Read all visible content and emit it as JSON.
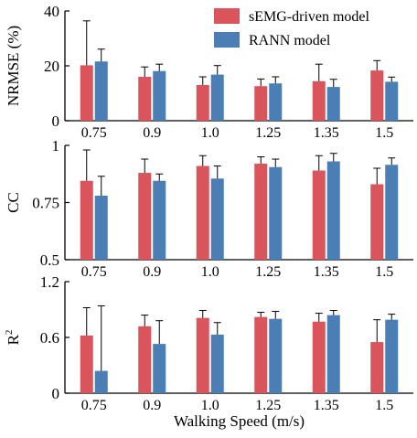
{
  "colors": {
    "semg": "#d9545b",
    "rann": "#4a7eb5",
    "axis": "#000000"
  },
  "chart_data": [
    {
      "type": "bar",
      "panel": "nrmse",
      "ylabel": "NRMSE (%)",
      "ylim": [
        0,
        40
      ],
      "yticks": [
        "0",
        "20",
        "40"
      ],
      "ytick_values": [
        0,
        20,
        40
      ],
      "categories": [
        "0.75",
        "0.9",
        "1.0",
        "1.25",
        "1.35",
        "1.5"
      ],
      "series": [
        {
          "name": "sEMG-driven model",
          "values": [
            20.2,
            16.0,
            13.0,
            12.6,
            14.4,
            18.3
          ],
          "errors": [
            16.2,
            3.6,
            3.0,
            2.6,
            6.2,
            3.6
          ]
        },
        {
          "name": "RANN model",
          "values": [
            21.6,
            18.1,
            16.8,
            13.6,
            12.3,
            14.2
          ],
          "errors": [
            4.5,
            2.5,
            3.3,
            2.4,
            2.8,
            1.7
          ]
        }
      ],
      "legend": "top-right"
    },
    {
      "type": "bar",
      "panel": "cc",
      "ylabel": "CC",
      "ylim": [
        0.5,
        1
      ],
      "yticks": [
        "0.5",
        "0.75",
        "1"
      ],
      "ytick_values": [
        0.5,
        0.75,
        1
      ],
      "categories": [
        "0.75",
        "0.9",
        "1.0",
        "1.25",
        "1.35",
        "1.5"
      ],
      "series": [
        {
          "name": "sEMG-driven model",
          "values": [
            0.845,
            0.88,
            0.91,
            0.92,
            0.89,
            0.83
          ],
          "errors": [
            0.135,
            0.06,
            0.045,
            0.03,
            0.065,
            0.07
          ]
        },
        {
          "name": "RANN model",
          "values": [
            0.78,
            0.845,
            0.855,
            0.905,
            0.93,
            0.915
          ],
          "errors": [
            0.085,
            0.03,
            0.055,
            0.035,
            0.035,
            0.03
          ]
        }
      ]
    },
    {
      "type": "bar",
      "panel": "r2",
      "ylabel": "R",
      "ylabel_sup": "2",
      "ylim": [
        0,
        1.2
      ],
      "yticks": [
        "0",
        "0.6",
        "1.2"
      ],
      "ytick_values": [
        0,
        0.6,
        1.2
      ],
      "categories": [
        "0.75",
        "0.9",
        "1.0",
        "1.25",
        "1.35",
        "1.5"
      ],
      "xlabel": "Walking Speed (m/s)",
      "series": [
        {
          "name": "sEMG-driven model",
          "values": [
            0.62,
            0.72,
            0.81,
            0.82,
            0.77,
            0.55
          ],
          "errors": [
            0.3,
            0.12,
            0.08,
            0.05,
            0.09,
            0.24
          ]
        },
        {
          "name": "RANN model",
          "values": [
            0.24,
            0.53,
            0.63,
            0.8,
            0.84,
            0.79
          ],
          "errors": [
            0.7,
            0.25,
            0.13,
            0.08,
            0.05,
            0.06
          ]
        }
      ]
    }
  ]
}
